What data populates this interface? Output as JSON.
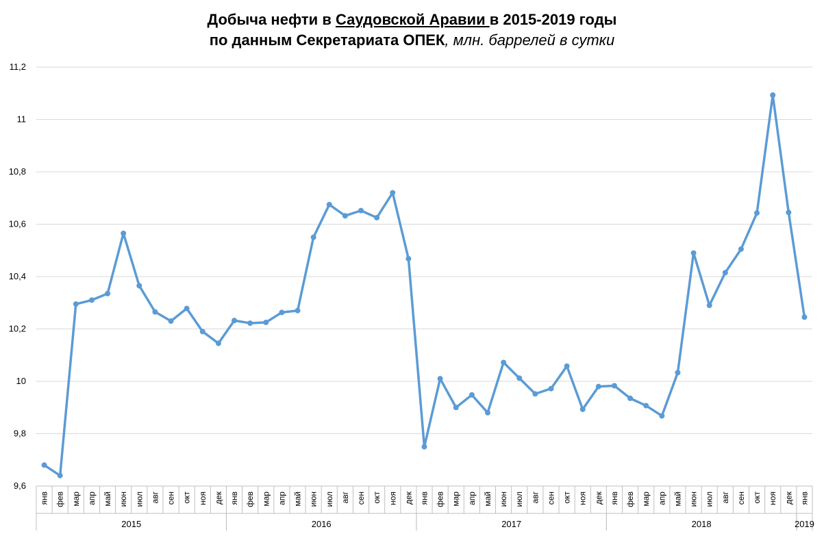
{
  "title": {
    "line1_a": "Добыча нефти в ",
    "line1_u": "Саудовской Аравии ",
    "line1_b": "в 2015-2019 годы",
    "line2_a": "по данным Секретариата ОПЕК",
    "line2_i": ", млн. баррелей в сутки"
  },
  "colors": {
    "series": "#5b9bd5",
    "grid": "#d9d9d9",
    "axis": "#bfbfbf"
  },
  "chart_data": {
    "type": "line",
    "title": "Добыча нефти в Саудовской Аравии в 2015-2019 годы по данным Секретариата ОПЕК, млн. баррелей в сутки",
    "ylim": [
      9.6,
      11.2
    ],
    "yticks": [
      "9,6",
      "9,8",
      "10",
      "10,2",
      "10,4",
      "10,6",
      "10,8",
      "11",
      "11,2"
    ],
    "grid": true,
    "months": [
      "янв",
      "фев",
      "мар",
      "апр",
      "май",
      "июн",
      "июл",
      "авг",
      "сен",
      "окт",
      "ноя",
      "дек",
      "янв",
      "фев",
      "мар",
      "апр",
      "май",
      "июн",
      "июл",
      "авг",
      "сен",
      "окт",
      "ноя",
      "дек",
      "янв",
      "фев",
      "мар",
      "апр",
      "май",
      "июн",
      "июл",
      "авг",
      "сен",
      "окт",
      "ноя",
      "дек",
      "янв",
      "фев",
      "мар",
      "апр",
      "май",
      "июн",
      "июл",
      "авг",
      "сен",
      "окт",
      "ноя",
      "дек",
      "янв"
    ],
    "years": [
      {
        "label": "2015",
        "start": 0,
        "count": 12
      },
      {
        "label": "2016",
        "start": 12,
        "count": 12
      },
      {
        "label": "2017",
        "start": 24,
        "count": 12
      },
      {
        "label": "2018",
        "start": 36,
        "count": 12
      },
      {
        "label": "2019",
        "start": 48,
        "count": 1
      }
    ],
    "values": [
      9.68,
      9.64,
      10.295,
      10.31,
      10.335,
      10.565,
      10.365,
      10.265,
      10.23,
      10.278,
      10.19,
      10.145,
      10.232,
      10.222,
      10.225,
      10.263,
      10.27,
      10.55,
      10.675,
      10.632,
      10.652,
      10.625,
      10.72,
      10.468,
      9.75,
      10.01,
      9.9,
      9.948,
      9.88,
      10.072,
      10.012,
      9.952,
      9.972,
      10.058,
      9.893,
      9.98,
      9.983,
      9.935,
      9.907,
      9.868,
      10.033,
      10.49,
      10.29,
      10.415,
      10.505,
      10.643,
      11.093,
      10.645,
      10.245
    ]
  }
}
